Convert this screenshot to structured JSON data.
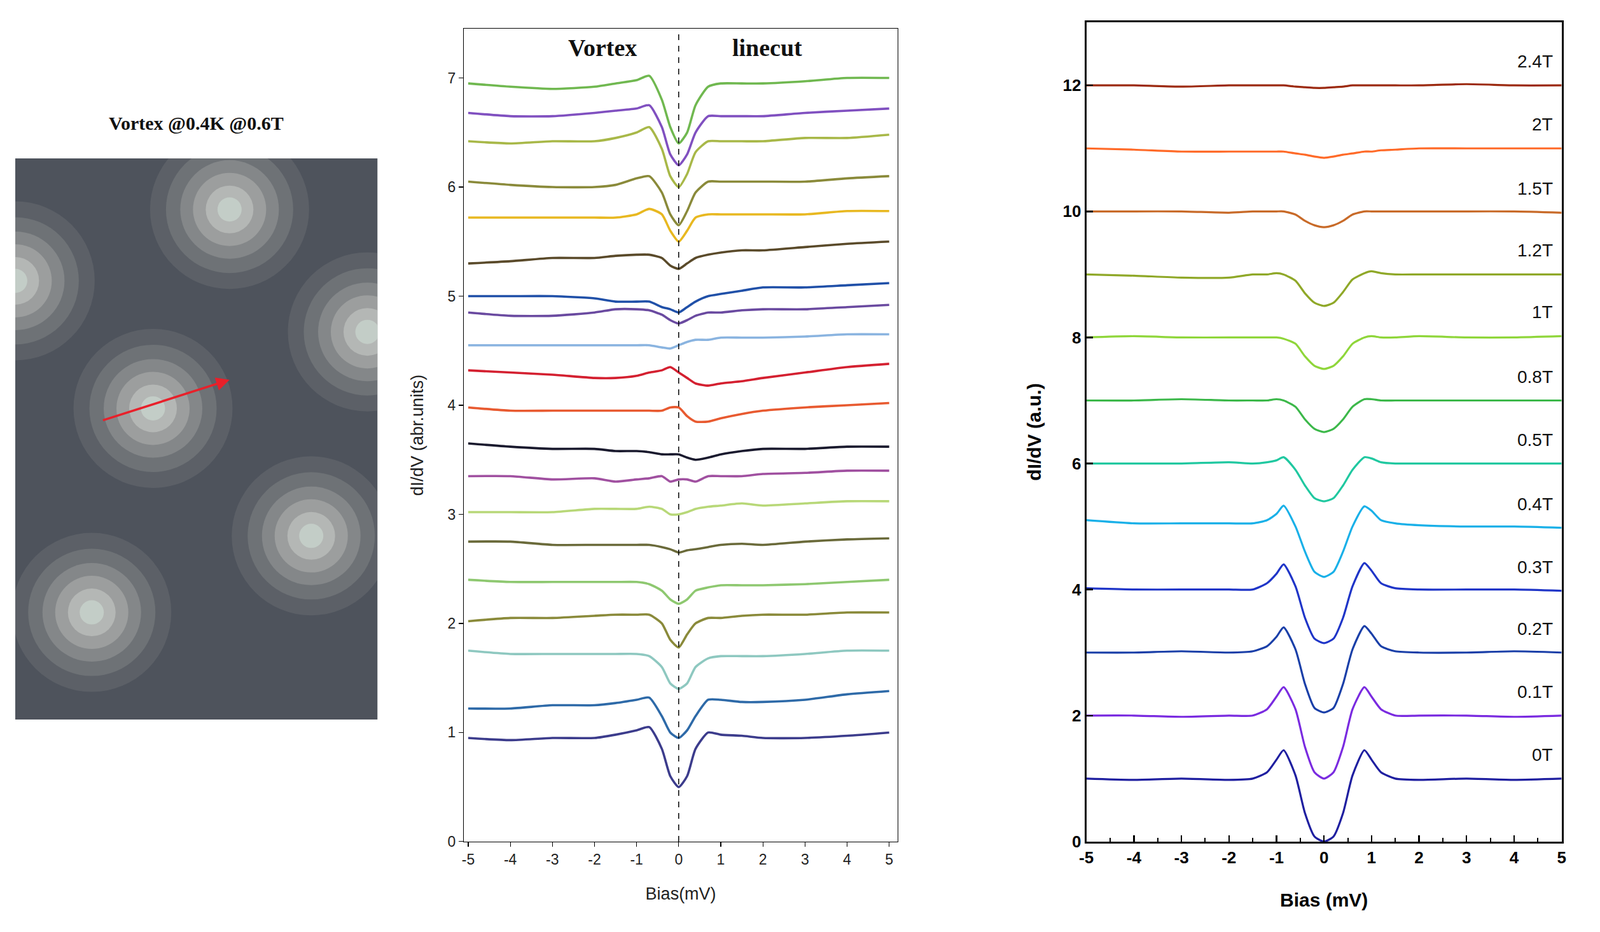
{
  "chart_data": [
    {
      "type": "vortex_map",
      "title": "Vortex @0.4K @0.6T",
      "tick_labels": false,
      "xlim": [
        0,
        355
      ],
      "ylim": [
        550,
        0
      ],
      "vortices": [
        [
          210,
          50
        ],
        [
          345,
          170
        ],
        [
          0,
          120
        ],
        [
          135,
          245
        ],
        [
          290,
          370
        ],
        [
          75,
          445
        ]
      ],
      "arrow": {
        "from": [
          85,
          257
        ],
        "to": [
          210,
          217
        ],
        "color": "#e8202a"
      }
    },
    {
      "type": "line",
      "annotations": [
        "Vortex",
        "linecut"
      ],
      "x_label": "Bias(mV)",
      "y_label": "dI/dV (abr.units)",
      "xlim": [
        -5.1,
        5.2
      ],
      "ylim": [
        0,
        7.45
      ],
      "xticks": [
        -5,
        -4,
        -3,
        -2,
        -1,
        0,
        1,
        2,
        3,
        4,
        5
      ],
      "yticks": [
        0,
        1,
        2,
        3,
        4,
        5,
        6,
        7
      ],
      "vlines": [
        0
      ],
      "x": [
        -5,
        -4,
        -3,
        -2,
        -1.5,
        -1,
        -0.7,
        -0.4,
        -0.2,
        0,
        0.2,
        0.4,
        0.7,
        1,
        1.5,
        2,
        3,
        4,
        5
      ],
      "series": [
        {
          "color": "#3c3c8c",
          "values": [
            0.95,
            0.93,
            0.95,
            0.95,
            0.98,
            1.02,
            1.05,
            0.85,
            0.6,
            0.5,
            0.6,
            0.85,
            1.0,
            0.98,
            0.97,
            0.95,
            0.95,
            0.97,
            1.0
          ]
        },
        {
          "color": "#2e6aa8",
          "values": [
            1.22,
            1.22,
            1.25,
            1.25,
            1.27,
            1.3,
            1.32,
            1.15,
            1.0,
            0.95,
            1.02,
            1.15,
            1.3,
            1.3,
            1.28,
            1.28,
            1.3,
            1.35,
            1.38
          ]
        },
        {
          "color": "#8ec8c0",
          "values": [
            1.75,
            1.72,
            1.72,
            1.72,
            1.72,
            1.72,
            1.7,
            1.6,
            1.45,
            1.4,
            1.45,
            1.6,
            1.68,
            1.7,
            1.7,
            1.7,
            1.72,
            1.75,
            1.75
          ]
        },
        {
          "color": "#8a8a3a",
          "values": [
            2.02,
            2.05,
            2.05,
            2.07,
            2.08,
            2.08,
            2.08,
            2.0,
            1.85,
            1.78,
            1.9,
            2.0,
            2.05,
            2.05,
            2.07,
            2.08,
            2.08,
            2.1,
            2.1
          ]
        },
        {
          "color": "#8ec870",
          "values": [
            2.4,
            2.38,
            2.38,
            2.38,
            2.38,
            2.38,
            2.36,
            2.3,
            2.22,
            2.18,
            2.22,
            2.3,
            2.33,
            2.35,
            2.35,
            2.35,
            2.36,
            2.38,
            2.4
          ]
        },
        {
          "color": "#6a6a3a",
          "values": [
            2.75,
            2.75,
            2.72,
            2.72,
            2.72,
            2.72,
            2.72,
            2.7,
            2.68,
            2.65,
            2.67,
            2.68,
            2.7,
            2.72,
            2.73,
            2.72,
            2.75,
            2.77,
            2.78
          ]
        },
        {
          "color": "#b8d878",
          "values": [
            3.02,
            3.02,
            3.02,
            3.05,
            3.05,
            3.05,
            3.07,
            3.05,
            3.0,
            3.0,
            3.02,
            3.05,
            3.07,
            3.08,
            3.1,
            3.08,
            3.1,
            3.12,
            3.12
          ]
        },
        {
          "color": "#a050a0",
          "values": [
            3.35,
            3.35,
            3.32,
            3.33,
            3.3,
            3.32,
            3.33,
            3.35,
            3.3,
            3.32,
            3.32,
            3.3,
            3.35,
            3.35,
            3.35,
            3.37,
            3.38,
            3.4,
            3.4
          ]
        },
        {
          "color": "#1a1a2e",
          "values": [
            3.65,
            3.62,
            3.6,
            3.6,
            3.58,
            3.58,
            3.57,
            3.55,
            3.55,
            3.55,
            3.52,
            3.5,
            3.52,
            3.55,
            3.58,
            3.6,
            3.6,
            3.62,
            3.62
          ]
        },
        {
          "color": "#e85a30",
          "values": [
            3.98,
            3.95,
            3.95,
            3.95,
            3.95,
            3.95,
            3.95,
            3.95,
            3.98,
            3.98,
            3.9,
            3.85,
            3.85,
            3.88,
            3.92,
            3.95,
            3.98,
            4.0,
            4.02
          ]
        },
        {
          "color": "#d42030",
          "values": [
            4.32,
            4.3,
            4.28,
            4.25,
            4.25,
            4.27,
            4.3,
            4.32,
            4.35,
            4.3,
            4.25,
            4.2,
            4.18,
            4.2,
            4.22,
            4.25,
            4.3,
            4.35,
            4.38
          ]
        },
        {
          "color": "#8ab4e0",
          "values": [
            4.55,
            4.55,
            4.55,
            4.55,
            4.55,
            4.55,
            4.55,
            4.53,
            4.52,
            4.55,
            4.58,
            4.6,
            4.6,
            4.62,
            4.62,
            4.62,
            4.63,
            4.65,
            4.65
          ]
        },
        {
          "color": "#6a4aa0",
          "values": [
            4.85,
            4.82,
            4.82,
            4.85,
            4.88,
            4.88,
            4.87,
            4.83,
            4.78,
            4.75,
            4.78,
            4.82,
            4.85,
            4.85,
            4.87,
            4.88,
            4.88,
            4.9,
            4.92
          ]
        },
        {
          "color": "#2050a8",
          "values": [
            5.0,
            5.0,
            5.0,
            4.98,
            4.95,
            4.95,
            4.95,
            4.9,
            4.88,
            4.85,
            4.9,
            4.95,
            5.0,
            5.02,
            5.05,
            5.08,
            5.08,
            5.1,
            5.12
          ]
        },
        {
          "color": "#5a4a2a",
          "values": [
            5.3,
            5.32,
            5.35,
            5.35,
            5.37,
            5.38,
            5.38,
            5.35,
            5.28,
            5.25,
            5.3,
            5.35,
            5.38,
            5.4,
            5.42,
            5.42,
            5.45,
            5.48,
            5.5
          ]
        },
        {
          "color": "#e8b820",
          "values": [
            5.72,
            5.72,
            5.72,
            5.72,
            5.72,
            5.75,
            5.8,
            5.75,
            5.6,
            5.5,
            5.6,
            5.72,
            5.75,
            5.75,
            5.75,
            5.75,
            5.75,
            5.78,
            5.78
          ]
        },
        {
          "color": "#8a8a3a",
          "values": [
            6.05,
            6.02,
            6.0,
            6.0,
            6.02,
            6.08,
            6.1,
            5.95,
            5.75,
            5.65,
            5.78,
            5.95,
            6.05,
            6.05,
            6.05,
            6.05,
            6.05,
            6.08,
            6.1
          ]
        },
        {
          "color": "#a8b848",
          "values": [
            6.42,
            6.4,
            6.42,
            6.42,
            6.45,
            6.5,
            6.55,
            6.35,
            6.1,
            6.0,
            6.12,
            6.32,
            6.42,
            6.42,
            6.42,
            6.42,
            6.45,
            6.45,
            6.48
          ]
        },
        {
          "color": "#8050c0",
          "values": [
            6.68,
            6.65,
            6.65,
            6.68,
            6.7,
            6.72,
            6.75,
            6.55,
            6.3,
            6.2,
            6.3,
            6.5,
            6.65,
            6.65,
            6.65,
            6.65,
            6.68,
            6.7,
            6.72
          ]
        },
        {
          "color": "#70b850",
          "values": [
            6.95,
            6.92,
            6.9,
            6.92,
            6.95,
            6.98,
            7.02,
            6.8,
            6.55,
            6.4,
            6.5,
            6.75,
            6.92,
            6.95,
            6.95,
            6.95,
            6.97,
            7.0,
            7.0
          ]
        }
      ]
    },
    {
      "type": "line",
      "x_label": "Bias (mV)",
      "y_label": "dI/dV (a.u.)",
      "xlim": [
        -5,
        5
      ],
      "ylim": [
        0,
        13
      ],
      "xticks": [
        -5,
        -4,
        -3,
        -2,
        -1,
        0,
        1,
        2,
        3,
        4,
        5
      ],
      "yticks": [
        0,
        2,
        4,
        6,
        8,
        10,
        12
      ],
      "x": [
        -5,
        -4,
        -3,
        -2,
        -1.5,
        -1.2,
        -1,
        -0.85,
        -0.6,
        -0.4,
        -0.2,
        0,
        0.2,
        0.4,
        0.6,
        0.85,
        1,
        1.2,
        1.5,
        2,
        3,
        4,
        5
      ],
      "series": [
        {
          "name": "0T",
          "color": "#1f1fa0",
          "values": [
            1.0,
            0.98,
            1.0,
            0.98,
            1.0,
            1.1,
            1.3,
            1.45,
            1.05,
            0.45,
            0.08,
            0.0,
            0.08,
            0.45,
            1.05,
            1.45,
            1.3,
            1.1,
            1.0,
            0.98,
            1.0,
            0.98,
            1.0
          ]
        },
        {
          "name": "0.1T",
          "color": "#7a2be0",
          "values": [
            2.0,
            2.0,
            1.98,
            2.0,
            2.0,
            2.1,
            2.3,
            2.45,
            2.1,
            1.5,
            1.1,
            1.0,
            1.1,
            1.5,
            2.1,
            2.45,
            2.3,
            2.1,
            2.0,
            2.0,
            2.0,
            1.98,
            2.0
          ]
        },
        {
          "name": "0.2T",
          "color": "#1a3fa8",
          "values": [
            3.0,
            3.0,
            3.02,
            3.0,
            3.02,
            3.1,
            3.25,
            3.4,
            3.05,
            2.5,
            2.12,
            2.05,
            2.12,
            2.5,
            3.05,
            3.42,
            3.3,
            3.1,
            3.02,
            3.0,
            3.0,
            3.02,
            3.0
          ]
        },
        {
          "name": "0.3T",
          "color": "#1f35c8",
          "values": [
            4.02,
            4.0,
            4.0,
            4.0,
            4.0,
            4.1,
            4.25,
            4.4,
            4.05,
            3.55,
            3.22,
            3.15,
            3.22,
            3.55,
            4.05,
            4.42,
            4.3,
            4.1,
            4.02,
            4.0,
            4.0,
            4.0,
            3.98
          ]
        },
        {
          "name": "0.4T",
          "color": "#19b0e8",
          "values": [
            5.1,
            5.05,
            5.05,
            5.05,
            5.05,
            5.1,
            5.2,
            5.33,
            5.0,
            4.6,
            4.28,
            4.2,
            4.28,
            4.6,
            5.0,
            5.32,
            5.25,
            5.1,
            5.05,
            5.02,
            5.0,
            5.0,
            4.98
          ]
        },
        {
          "name": "0.5T",
          "color": "#20c8a0",
          "values": [
            6.0,
            6.0,
            6.0,
            6.02,
            6.0,
            6.02,
            6.05,
            6.1,
            5.9,
            5.65,
            5.45,
            5.4,
            5.45,
            5.65,
            5.9,
            6.1,
            6.08,
            6.02,
            6.0,
            6.0,
            6.0,
            6.0,
            6.0
          ]
        },
        {
          "name": "0.8T",
          "color": "#3cb84a",
          "values": [
            7.0,
            7.0,
            7.02,
            7.0,
            7.0,
            7.0,
            7.02,
            7.0,
            6.9,
            6.7,
            6.55,
            6.5,
            6.55,
            6.7,
            6.9,
            7.02,
            7.02,
            7.0,
            7.0,
            7.0,
            7.0,
            7.0,
            7.0
          ]
        },
        {
          "name": "1T",
          "color": "#8fd63a",
          "values": [
            8.0,
            8.02,
            8.0,
            8.0,
            8.0,
            8.0,
            8.0,
            7.98,
            7.9,
            7.7,
            7.55,
            7.5,
            7.55,
            7.7,
            7.9,
            8.0,
            8.02,
            8.0,
            8.0,
            8.02,
            8.0,
            8.0,
            8.02
          ]
        },
        {
          "name": "1.2T",
          "color": "#8fa828",
          "values": [
            9.0,
            8.98,
            8.95,
            8.95,
            9.0,
            9.0,
            9.02,
            9.0,
            8.9,
            8.7,
            8.55,
            8.5,
            8.55,
            8.72,
            8.92,
            9.02,
            9.05,
            9.02,
            9.0,
            9.0,
            9.0,
            9.0,
            9.0
          ]
        },
        {
          "name": "1.5T",
          "color": "#c86a28",
          "values": [
            10.0,
            10.0,
            10.0,
            9.98,
            10.0,
            10.0,
            10.0,
            10.0,
            9.95,
            9.85,
            9.78,
            9.75,
            9.78,
            9.85,
            9.95,
            10.0,
            10.0,
            10.0,
            10.0,
            10.0,
            10.0,
            10.0,
            9.98
          ]
        },
        {
          "name": "2T",
          "color": "#ff6a28",
          "values": [
            11.0,
            10.98,
            10.95,
            10.95,
            10.95,
            10.95,
            10.95,
            10.95,
            10.92,
            10.9,
            10.87,
            10.85,
            10.87,
            10.9,
            10.92,
            10.95,
            10.95,
            10.97,
            10.98,
            11.0,
            11.0,
            11.0,
            11.0
          ]
        },
        {
          "name": "2.4T",
          "color": "#9c2a10",
          "values": [
            12.0,
            12.0,
            11.98,
            12.0,
            12.0,
            12.0,
            12.0,
            12.0,
            11.98,
            11.97,
            11.96,
            11.96,
            11.97,
            11.98,
            12.0,
            12.0,
            12.0,
            12.0,
            12.0,
            12.0,
            12.02,
            12.0,
            12.0
          ]
        }
      ]
    }
  ]
}
